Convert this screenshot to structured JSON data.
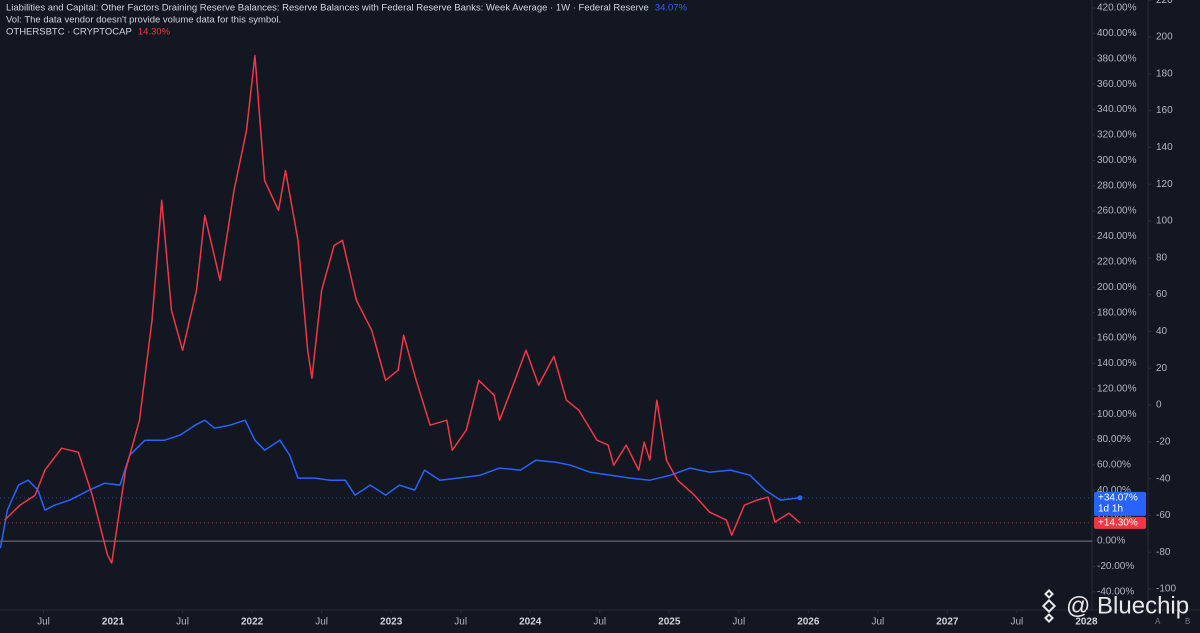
{
  "chart_data": {
    "type": "line",
    "title": "Liabilities and Capital: Other Factors Draining Reserve Balances: Reserve Balances with Federal Reserve Banks: Week Average · 1W · Federal Reserve",
    "subtitle": "Vol: The data vendor doesn't provide volume data for this symbol.",
    "watermark": "@ Bluechip",
    "countdown": "1d 1h",
    "axis_buttons": [
      "A",
      "B"
    ],
    "xlim": [
      2020.187,
      2028.04
    ],
    "xticks": [
      {
        "value": 2020.5,
        "label": "Jul"
      },
      2021,
      {
        "value": 2021.5,
        "label": "Jul"
      },
      2022,
      {
        "value": 2022.5,
        "label": "Jul"
      },
      2023,
      {
        "value": 2023.5,
        "label": "Jul"
      },
      2024,
      {
        "value": 2024.5,
        "label": "Jul"
      },
      2025,
      {
        "value": 2025.5,
        "label": "Jul"
      },
      2026,
      {
        "value": 2026.5,
        "label": "Jul"
      },
      2027,
      {
        "value": 2027.5,
        "label": "Jul"
      },
      2028
    ],
    "ylim": [
      -54.3,
      426.3
    ],
    "yticks": [
      {
        "value": -40,
        "label": "-40.00%"
      },
      {
        "value": -20,
        "label": "-20.00%"
      },
      {
        "value": 0,
        "label": "0.00%"
      },
      {
        "value": 20,
        "label": "20.00%"
      },
      {
        "value": 40,
        "label": "40.00%"
      },
      {
        "value": 60,
        "label": "60.00%"
      },
      {
        "value": 80,
        "label": "80.00%"
      },
      {
        "value": 100,
        "label": "100.00%"
      },
      {
        "value": 120,
        "label": "120.00%"
      },
      {
        "value": 140,
        "label": "140.00%"
      },
      {
        "value": 160,
        "label": "160.00%"
      },
      {
        "value": 180,
        "label": "180.00%"
      },
      {
        "value": 200,
        "label": "200.00%"
      },
      {
        "value": 220,
        "label": "220.00%"
      },
      {
        "value": 240,
        "label": "240.00%"
      },
      {
        "value": 260,
        "label": "260.00%"
      },
      {
        "value": 280,
        "label": "280.00%"
      },
      {
        "value": 300,
        "label": "300.00%"
      },
      {
        "value": 320,
        "label": "320.00%"
      },
      {
        "value": 340,
        "label": "340.00%"
      },
      {
        "value": 360,
        "label": "360.00%"
      },
      {
        "value": 380,
        "label": "380.00%"
      },
      {
        "value": 400,
        "label": "400.00%"
      },
      {
        "value": 420,
        "label": "420.00%"
      }
    ],
    "y2lim": [
      -111.4,
      220.1
    ],
    "y2ticks": [
      -100,
      -80,
      -60,
      -40,
      -20,
      0,
      20,
      40,
      60,
      80,
      100,
      120,
      140,
      160,
      180,
      200,
      220
    ],
    "grid": false,
    "series": [
      {
        "name": "Liabilities and Capital: Other Factors Draining Reserve Balances: Reserve Balances with Federal Reserve Banks: Week Average · 1W · Federal Reserve",
        "legend_value": "34.07%",
        "last_label": "+34.07%",
        "color": "#2962ff",
        "x": [
          2020.19,
          2020.24,
          2020.32,
          2020.39,
          2020.46,
          2020.51,
          2020.58,
          2020.69,
          2020.83,
          2020.94,
          2021.05,
          2021.12,
          2021.23,
          2021.37,
          2021.48,
          2021.59,
          2021.66,
          2021.73,
          2021.84,
          2021.95,
          2022.02,
          2022.09,
          2022.2,
          2022.27,
          2022.33,
          2022.45,
          2022.56,
          2022.67,
          2022.74,
          2022.85,
          2022.96,
          2023.06,
          2023.17,
          2023.24,
          2023.35,
          2023.48,
          2023.64,
          2023.78,
          2023.93,
          2024.04,
          2024.18,
          2024.29,
          2024.43,
          2024.58,
          2024.72,
          2024.86,
          2025.01,
          2025.15,
          2025.29,
          2025.44,
          2025.58,
          2025.69,
          2025.8,
          2025.94
        ],
        "values": [
          -5.5,
          24.4,
          44.1,
          48.0,
          40.2,
          24.4,
          28.3,
          32.3,
          40.2,
          45.6,
          44.1,
          67.7,
          79.5,
          79.5,
          83.4,
          91.3,
          95.2,
          88.9,
          91.3,
          95.2,
          79.5,
          71.6,
          79.5,
          67.7,
          49.6,
          49.6,
          48.0,
          48.0,
          36.2,
          44.1,
          36.2,
          44.1,
          40.2,
          55.9,
          48.0,
          49.6,
          51.9,
          57.5,
          55.9,
          63.7,
          62.2,
          59.8,
          54.3,
          51.9,
          49.6,
          48.0,
          51.9,
          57.5,
          54.3,
          55.9,
          51.9,
          40.2,
          32.3,
          34.07
        ]
      },
      {
        "name": "OTHERSBTC · CRYPTOCAP",
        "legend_value": "14.30%",
        "last_label": "+14.30%",
        "color": "#f23645",
        "x": [
          2020.22,
          2020.33,
          2020.44,
          2020.51,
          2020.63,
          2020.75,
          2020.85,
          2020.96,
          2020.99,
          2021.09,
          2021.19,
          2021.28,
          2021.35,
          2021.42,
          2021.5,
          2021.6,
          2021.66,
          2021.77,
          2021.87,
          2021.96,
          2022.02,
          2022.09,
          2022.19,
          2022.24,
          2022.33,
          2022.4,
          2022.43,
          2022.5,
          2022.59,
          2022.65,
          2022.75,
          2022.86,
          2022.96,
          2023.05,
          2023.09,
          2023.18,
          2023.28,
          2023.4,
          2023.44,
          2023.54,
          2023.63,
          2023.74,
          2023.78,
          2023.89,
          2023.97,
          2024.06,
          2024.17,
          2024.26,
          2024.35,
          2024.48,
          2024.56,
          2024.6,
          2024.69,
          2024.78,
          2024.82,
          2024.86,
          2024.91,
          2024.98,
          2025.06,
          2025.18,
          2025.29,
          2025.41,
          2025.45,
          2025.54,
          2025.63,
          2025.71,
          2025.76,
          2025.86,
          2025.94
        ],
        "values": [
          16.5,
          28.3,
          36.2,
          55.9,
          73.2,
          70.0,
          36.2,
          -11.0,
          -17.3,
          55.9,
          95.2,
          173.9,
          268.4,
          181.8,
          150.3,
          197.5,
          256.6,
          205.4,
          276.2,
          323.5,
          382.5,
          284.1,
          260.5,
          292.0,
          236.9,
          150.3,
          128.3,
          197.5,
          232.9,
          236.9,
          189.7,
          166.1,
          126.7,
          134.6,
          162.1,
          126.7,
          91.3,
          95.2,
          71.6,
          87.4,
          126.7,
          114.9,
          95.2,
          126.7,
          150.3,
          122.8,
          145.6,
          111.0,
          103.1,
          79.5,
          75.6,
          59.8,
          75.6,
          55.9,
          77.9,
          63.7,
          111.0,
          63.7,
          48.0,
          36.2,
          22.8,
          16.5,
          4.7,
          28.3,
          32.3,
          34.6,
          15.0,
          22.0,
          14.3
        ]
      }
    ]
  }
}
